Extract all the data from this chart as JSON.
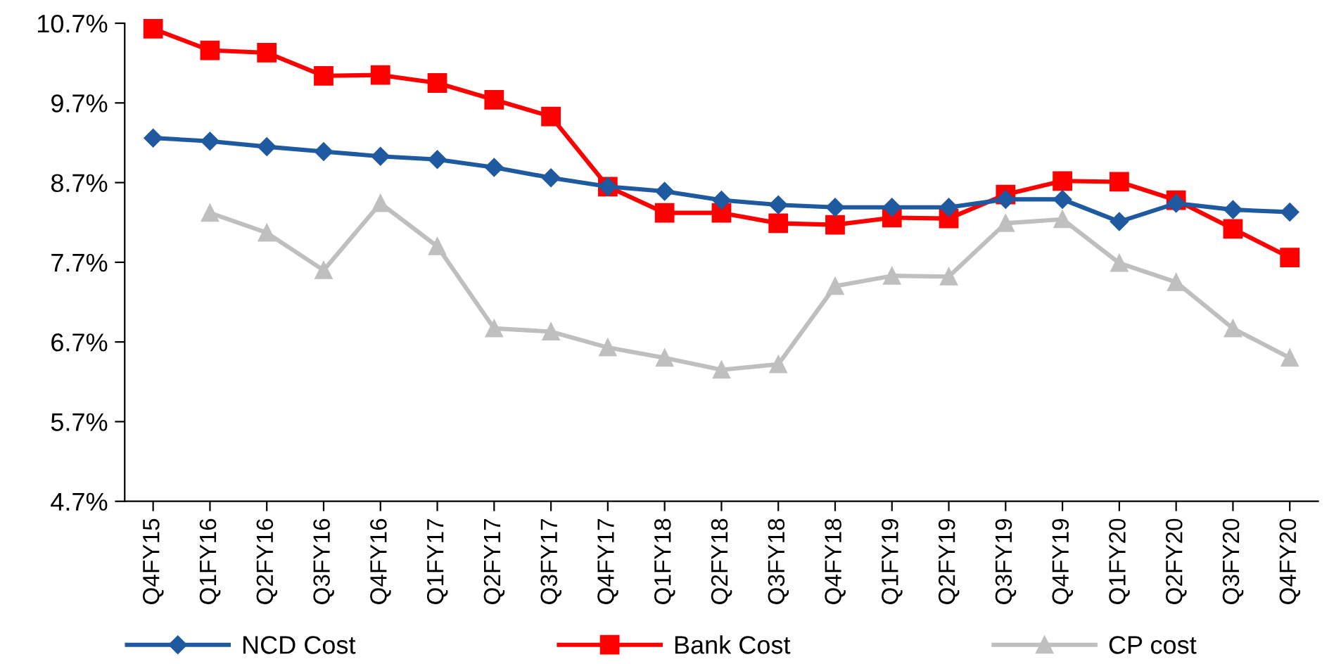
{
  "chart_data": {
    "type": "line",
    "categories": [
      "Q4FY15",
      "Q1FY16",
      "Q2FY16",
      "Q3FY16",
      "Q4FY16",
      "Q1FY17",
      "Q2FY17",
      "Q3FY17",
      "Q4FY17",
      "Q1FY18",
      "Q2FY18",
      "Q3FY18",
      "Q4FY18",
      "Q1FY19",
      "Q2FY19",
      "Q3FY19",
      "Q4FY19",
      "Q1FY20",
      "Q2FY20",
      "Q3FY20",
      "Q4FY20"
    ],
    "series": [
      {
        "name": "NCD Cost",
        "color": "#1f5aa0",
        "marker": "diamond",
        "values": [
          9.26,
          9.22,
          9.15,
          9.09,
          9.03,
          8.99,
          8.89,
          8.76,
          8.65,
          8.59,
          8.48,
          8.42,
          8.39,
          8.39,
          8.39,
          8.49,
          8.49,
          8.21,
          8.44,
          8.36,
          8.33
        ]
      },
      {
        "name": "Bank Cost",
        "color": "#ff0000",
        "marker": "square",
        "values": [
          10.63,
          10.36,
          10.33,
          10.04,
          10.05,
          9.95,
          9.74,
          9.53,
          8.65,
          8.32,
          8.32,
          8.19,
          8.17,
          8.26,
          8.25,
          8.55,
          8.72,
          8.71,
          8.48,
          8.12,
          7.76
        ]
      },
      {
        "name": "CP cost",
        "color": "#bfbfbf",
        "marker": "triangle",
        "values": [
          null,
          8.32,
          8.07,
          7.6,
          8.44,
          7.9,
          6.87,
          6.83,
          6.63,
          6.5,
          6.35,
          6.42,
          7.4,
          7.53,
          7.52,
          8.19,
          8.24,
          7.69,
          7.45,
          6.87,
          6.5
        ]
      }
    ],
    "ylim": [
      4.7,
      10.7
    ],
    "yticks": [
      {
        "value": 4.7,
        "label": "4.7%"
      },
      {
        "value": 5.7,
        "label": "5.7%"
      },
      {
        "value": 6.7,
        "label": "6.7%"
      },
      {
        "value": 7.7,
        "label": "7.7%"
      },
      {
        "value": 8.7,
        "label": "8.7%"
      },
      {
        "value": 9.7,
        "label": "9.7%"
      },
      {
        "value": 10.7,
        "label": "10.7%"
      }
    ],
    "legend": "bottom",
    "grid": false
  }
}
